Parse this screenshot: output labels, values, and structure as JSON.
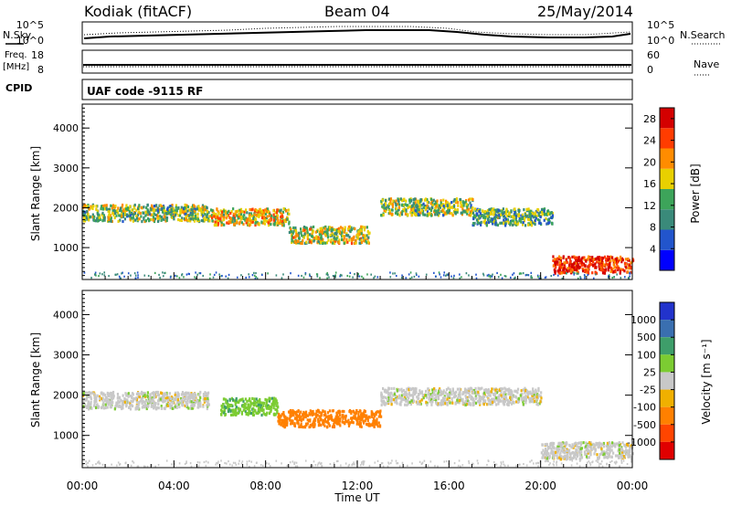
{
  "header": {
    "station": "Kodiak (fitACF)",
    "beam": "Beam 04",
    "date": "25/May/2014"
  },
  "noise_panel": {
    "left_label": "N.Sky",
    "right_label": "N.Search",
    "left_ticks": [
      "10^5",
      "10^0"
    ],
    "right_ticks": [
      "10^5",
      "10^0"
    ]
  },
  "freq_panel": {
    "left_label_1": "Freq.",
    "left_label_2": "[MHz]",
    "left_ticks": [
      "18",
      "8"
    ],
    "right_label": "Nave",
    "right_ticks": [
      "60",
      "0"
    ]
  },
  "cpid": {
    "label": "CPID",
    "program": "UAF code -9115 RF"
  },
  "colors": {
    "power_scale": [
      "#0000ff",
      "#2255cc",
      "#3a8a7a",
      "#3da45a",
      "#e8d000",
      "#ff8c00",
      "#ff3c00",
      "#d40000"
    ],
    "velocity_scale": [
      "#2233cc",
      "#3a6fb0",
      "#3e9e6a",
      "#7ccc32",
      "#c8c8c8",
      "#f0b000",
      "#ff8000",
      "#ff4500",
      "#e00000"
    ]
  },
  "chart_data": [
    {
      "type": "heatmap",
      "title": "",
      "xlabel": "Time UT",
      "ylabel": "Slant Range [km]",
      "x_ticks": [
        "00:00",
        "04:00",
        "08:00",
        "12:00",
        "16:00",
        "20:00",
        "00:00"
      ],
      "y_ticks": [
        "1000",
        "2000",
        "3000",
        "4000"
      ],
      "ylim": [
        200,
        4600
      ],
      "colorbar_label": "Power [dB]",
      "colorbar_ticks": [
        "4",
        "8",
        "12",
        "16",
        "20",
        "24",
        "28"
      ],
      "zlim": [
        0,
        30
      ],
      "echo_bands": [
        {
          "t_start": 0.0,
          "t_end": 5.5,
          "range_km": 1900,
          "power_db": 14
        },
        {
          "t_start": 5.5,
          "t_end": 9.0,
          "range_km": 1800,
          "power_db": 18
        },
        {
          "t_start": 9.0,
          "t_end": 12.5,
          "range_km": 1350,
          "power_db": 16
        },
        {
          "t_start": 13.0,
          "t_end": 17.0,
          "range_km": 2050,
          "power_db": 14
        },
        {
          "t_start": 17.0,
          "t_end": 20.5,
          "range_km": 1800,
          "power_db": 12
        },
        {
          "t_start": 20.5,
          "t_end": 24.0,
          "range_km": 600,
          "power_db": 26
        }
      ]
    },
    {
      "type": "heatmap",
      "title": "",
      "xlabel": "Time UT",
      "ylabel": "Slant Range [km]",
      "x_ticks": [
        "00:00",
        "04:00",
        "08:00",
        "12:00",
        "16:00",
        "20:00",
        "00:00"
      ],
      "y_ticks": [
        "1000",
        "2000",
        "3000",
        "4000"
      ],
      "ylim": [
        200,
        4600
      ],
      "colorbar_label": "Velocity [m s⁻¹]",
      "colorbar_ticks": [
        "1000",
        "500",
        "100",
        "25",
        "-25",
        "-100",
        "-500",
        "-1000"
      ],
      "echo_bands": [
        {
          "t_start": 0.0,
          "t_end": 5.5,
          "range_km": 1900,
          "velocity_ms": 0
        },
        {
          "t_start": 6.0,
          "t_end": 8.5,
          "range_km": 1750,
          "velocity_ms": 80
        },
        {
          "t_start": 8.5,
          "t_end": 13.0,
          "range_km": 1450,
          "velocity_ms": -150
        },
        {
          "t_start": 13.0,
          "t_end": 20.0,
          "range_km": 2000,
          "velocity_ms": 0
        },
        {
          "t_start": 20.0,
          "t_end": 24.0,
          "range_km": 650,
          "velocity_ms": 0
        }
      ]
    }
  ]
}
